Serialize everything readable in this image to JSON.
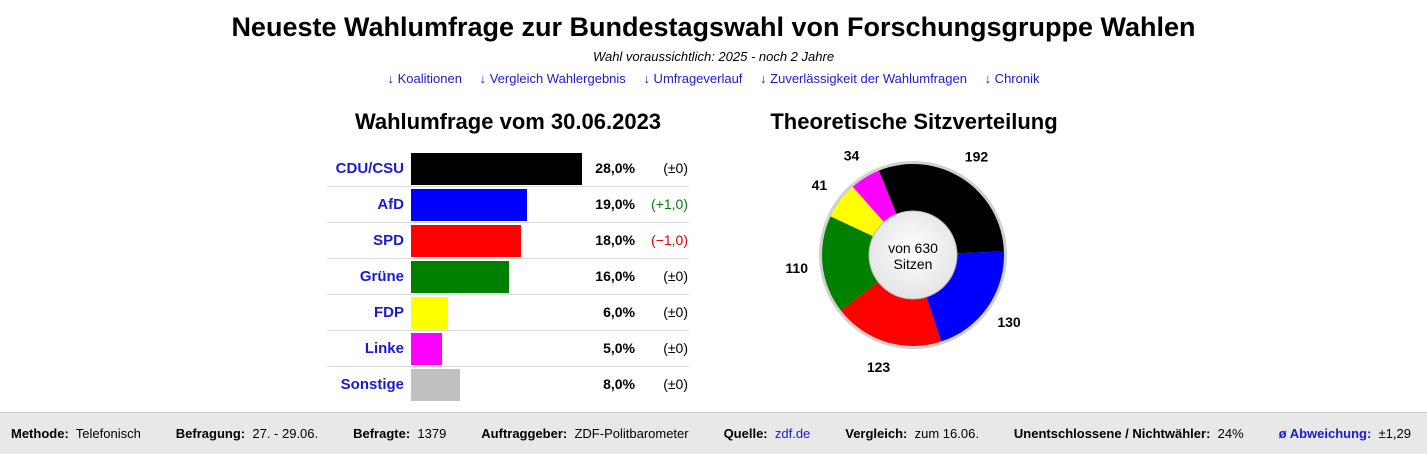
{
  "page": {
    "title": "Neueste Wahlumfrage zur Bundestagswahl von Forschungsgruppe Wahlen",
    "subtitle": "Wahl voraussichtlich: 2025 - noch 2 Jahre",
    "nav": [
      "↓ Koalitionen",
      "↓ Vergleich Wahlergebnis",
      "↓ Umfrageverlauf",
      "↓ Zuverlässigkeit der Wahlumfragen",
      "↓ Chronik"
    ]
  },
  "chart_data": [
    {
      "type": "bar",
      "orientation": "horizontal",
      "title": "Wahlumfrage vom 30.06.2023",
      "categories": [
        "CDU/CSU",
        "AfD",
        "SPD",
        "Grüne",
        "FDP",
        "Linke",
        "Sonstige"
      ],
      "values": [
        28.0,
        19.0,
        18.0,
        16.0,
        6.0,
        5.0,
        8.0
      ],
      "value_labels": [
        "28,0%",
        "19,0%",
        "18,0%",
        "16,0%",
        "6,0%",
        "5,0%",
        "8,0%"
      ],
      "change_labels": [
        "(±0)",
        "(+1,0)",
        "(−1,0)",
        "(±0)",
        "(±0)",
        "(±0)",
        "(±0)"
      ],
      "change_direction": [
        "none",
        "up",
        "down",
        "none",
        "none",
        "none",
        "none"
      ],
      "colors": [
        "#000000",
        "#0000ff",
        "#ff0000",
        "#008000",
        "#ffff00",
        "#ff00ff",
        "#c0c0c0"
      ],
      "xlim": [
        0,
        28
      ]
    },
    {
      "type": "pie",
      "title": "Theoretische Sitzverteilung",
      "center_label": [
        "von 630",
        "Sitzen"
      ],
      "categories": [
        "CDU/CSU",
        "AfD",
        "SPD",
        "Grüne",
        "FDP",
        "Linke"
      ],
      "values": [
        192,
        130,
        123,
        110,
        41,
        34
      ],
      "total": 630,
      "colors": [
        "#000000",
        "#0000ff",
        "#ff0000",
        "#008000",
        "#ffff00",
        "#ff00ff"
      ]
    }
  ],
  "footer": {
    "items": [
      {
        "label": "Methode:",
        "value": "Telefonisch"
      },
      {
        "label": "Befragung:",
        "value": "27. - 29.06."
      },
      {
        "label": "Befragte:",
        "value": "1379"
      },
      {
        "label": "Auftraggeber:",
        "value": "ZDF-Politbarometer"
      },
      {
        "label": "Quelle:",
        "value": "zdf.de"
      },
      {
        "label": "Vergleich:",
        "value": "zum 16.06."
      },
      {
        "label": "Unentschlossene / Nichtwähler:",
        "value": "24%"
      },
      {
        "label": "ø Abweichung:",
        "value": "±1,29"
      }
    ]
  },
  "colors": {
    "link": "#1a1ad6",
    "positive": "#0a7a0a",
    "negative": "#e00000",
    "footer_bg": "#e8e8e8"
  }
}
